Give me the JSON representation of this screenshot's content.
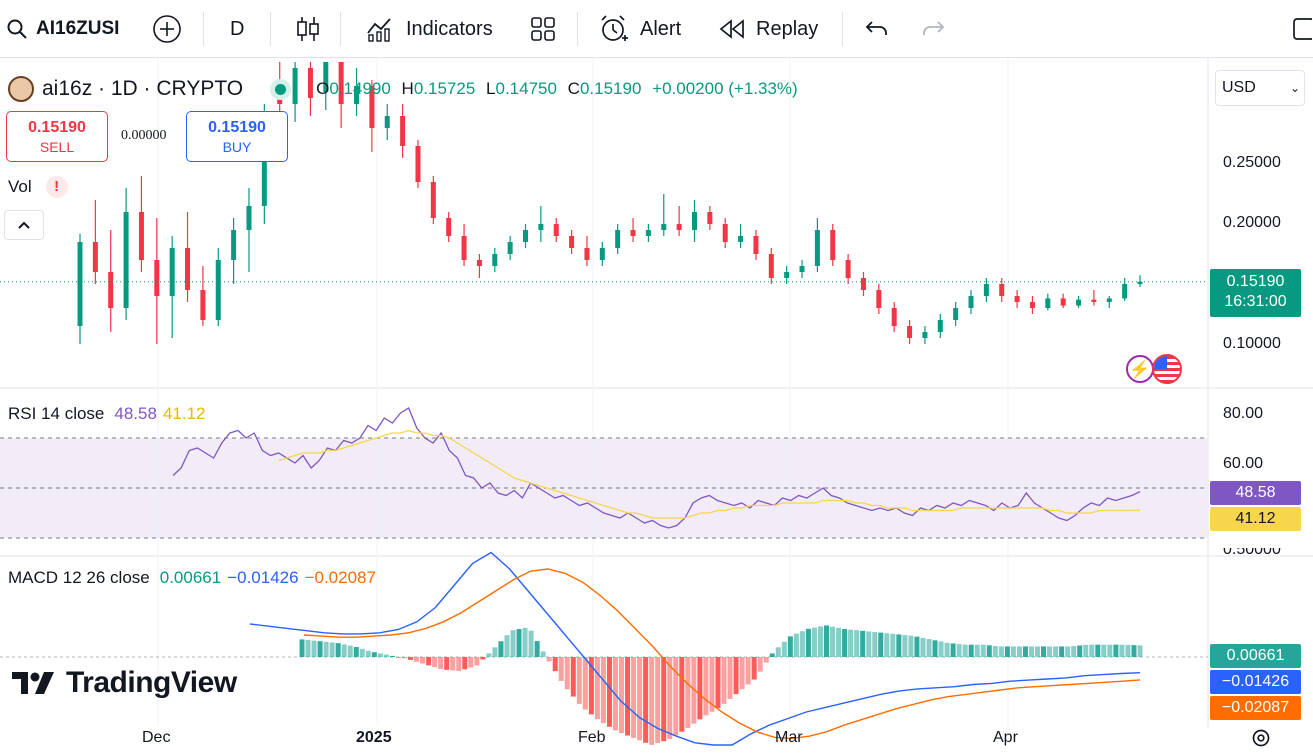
{
  "toolbar": {
    "symbol": "AI16ZUSI",
    "interval": "D",
    "indicators_label": "Indicators",
    "alert_label": "Alert",
    "replay_label": "Replay"
  },
  "header": {
    "symbol_title": "ai16z · 1D · CRYPTO",
    "o_label": "O",
    "o_value": "0.14990",
    "h_label": "H",
    "h_value": "0.15725",
    "l_label": "L",
    "l_value": "0.14750",
    "c_label": "C",
    "c_value": "0.15190",
    "change": "+0.00200 (+1.33%)",
    "currency": "USD"
  },
  "trade": {
    "sell_price": "0.15190",
    "sell_label": "SELL",
    "spread": "0.00000",
    "buy_price": "0.15190",
    "buy_label": "BUY"
  },
  "vol_label": "Vol",
  "price_axis": [
    "0.25000",
    "0.20000",
    "0.10000"
  ],
  "current_price": {
    "value": "0.15190",
    "countdown": "16:31:00"
  },
  "rsi": {
    "label": "RSI 14 close",
    "value": "48.58",
    "ma_value": "41.12",
    "axis": [
      "80.00",
      "60.00"
    ],
    "cut_label": "0.50000"
  },
  "macd": {
    "label": "MACD 12 26 close",
    "hist": "0.00661",
    "macd": "−0.01426",
    "signal": "−0.02087"
  },
  "time_axis": [
    "Dec",
    "2025",
    "Feb",
    "Mar",
    "Apr"
  ],
  "brand": "TradingView",
  "colors": {
    "up": "#089981",
    "down": "#f23645",
    "rsi": "#7e57c2",
    "rsi_ma": "#f7d54d",
    "macd": "#2962ff",
    "signal": "#ff6d00"
  },
  "chart_data": {
    "type": "candlestick",
    "symbol": "ai16z",
    "interval": "1D",
    "months": [
      "Dec",
      "2025",
      "Feb",
      "Mar",
      "Apr"
    ],
    "candles_ohlc": [
      [
        0.115,
        0.192,
        0.1,
        0.185
      ],
      [
        0.185,
        0.22,
        0.15,
        0.16
      ],
      [
        0.16,
        0.195,
        0.11,
        0.13
      ],
      [
        0.13,
        0.23,
        0.12,
        0.21
      ],
      [
        0.21,
        0.24,
        0.16,
        0.17
      ],
      [
        0.17,
        0.205,
        0.1,
        0.14
      ],
      [
        0.14,
        0.19,
        0.105,
        0.18
      ],
      [
        0.18,
        0.21,
        0.135,
        0.145
      ],
      [
        0.145,
        0.165,
        0.115,
        0.12
      ],
      [
        0.12,
        0.18,
        0.115,
        0.17
      ],
      [
        0.17,
        0.205,
        0.15,
        0.195
      ],
      [
        0.195,
        0.23,
        0.16,
        0.215
      ],
      [
        0.215,
        0.3,
        0.2,
        0.28
      ],
      [
        0.32,
        0.38,
        0.27,
        0.3
      ],
      [
        0.3,
        0.35,
        0.285,
        0.33
      ],
      [
        0.33,
        0.36,
        0.29,
        0.305
      ],
      [
        0.31,
        0.35,
        0.295,
        0.34
      ],
      [
        0.34,
        0.36,
        0.28,
        0.3
      ],
      [
        0.3,
        0.33,
        0.29,
        0.315
      ],
      [
        0.315,
        0.32,
        0.26,
        0.28
      ],
      [
        0.28,
        0.3,
        0.27,
        0.29
      ],
      [
        0.29,
        0.3,
        0.255,
        0.265
      ],
      [
        0.265,
        0.27,
        0.23,
        0.235
      ],
      [
        0.235,
        0.24,
        0.2,
        0.205
      ],
      [
        0.205,
        0.21,
        0.185,
        0.19
      ],
      [
        0.19,
        0.2,
        0.165,
        0.17
      ],
      [
        0.17,
        0.175,
        0.155,
        0.165
      ],
      [
        0.165,
        0.18,
        0.16,
        0.175
      ],
      [
        0.175,
        0.19,
        0.17,
        0.185
      ],
      [
        0.185,
        0.2,
        0.18,
        0.195
      ],
      [
        0.195,
        0.215,
        0.185,
        0.2
      ],
      [
        0.2,
        0.205,
        0.185,
        0.19
      ],
      [
        0.19,
        0.195,
        0.175,
        0.18
      ],
      [
        0.18,
        0.19,
        0.165,
        0.17
      ],
      [
        0.17,
        0.185,
        0.165,
        0.18
      ],
      [
        0.18,
        0.2,
        0.175,
        0.195
      ],
      [
        0.195,
        0.205,
        0.185,
        0.19
      ],
      [
        0.19,
        0.2,
        0.185,
        0.195
      ],
      [
        0.195,
        0.225,
        0.19,
        0.2
      ],
      [
        0.2,
        0.215,
        0.19,
        0.195
      ],
      [
        0.195,
        0.22,
        0.185,
        0.21
      ],
      [
        0.21,
        0.215,
        0.195,
        0.2
      ],
      [
        0.2,
        0.205,
        0.18,
        0.185
      ],
      [
        0.185,
        0.2,
        0.18,
        0.19
      ],
      [
        0.19,
        0.195,
        0.17,
        0.175
      ],
      [
        0.175,
        0.18,
        0.15,
        0.155
      ],
      [
        0.155,
        0.165,
        0.15,
        0.16
      ],
      [
        0.16,
        0.17,
        0.155,
        0.165
      ],
      [
        0.165,
        0.205,
        0.16,
        0.195
      ],
      [
        0.195,
        0.2,
        0.165,
        0.17
      ],
      [
        0.17,
        0.175,
        0.15,
        0.155
      ],
      [
        0.155,
        0.16,
        0.14,
        0.145
      ],
      [
        0.145,
        0.15,
        0.125,
        0.13
      ],
      [
        0.13,
        0.135,
        0.11,
        0.115
      ],
      [
        0.115,
        0.12,
        0.1,
        0.105
      ],
      [
        0.105,
        0.115,
        0.1,
        0.11
      ],
      [
        0.11,
        0.125,
        0.105,
        0.12
      ],
      [
        0.12,
        0.135,
        0.115,
        0.13
      ],
      [
        0.13,
        0.145,
        0.125,
        0.14
      ],
      [
        0.14,
        0.155,
        0.135,
        0.15
      ],
      [
        0.15,
        0.155,
        0.135,
        0.14
      ],
      [
        0.14,
        0.145,
        0.13,
        0.135
      ],
      [
        0.135,
        0.14,
        0.125,
        0.13
      ],
      [
        0.13,
        0.142,
        0.128,
        0.138
      ],
      [
        0.138,
        0.142,
        0.13,
        0.132
      ],
      [
        0.132,
        0.14,
        0.13,
        0.137
      ],
      [
        0.137,
        0.145,
        0.132,
        0.135
      ],
      [
        0.135,
        0.14,
        0.13,
        0.138
      ],
      [
        0.138,
        0.155,
        0.136,
        0.15
      ],
      [
        0.1499,
        0.1573,
        0.1475,
        0.1519
      ]
    ],
    "price_scale_ticks": [
      0.25,
      0.2,
      0.1
    ],
    "rsi_values": [
      55,
      58,
      65,
      66,
      64,
      62,
      68,
      72,
      73,
      70,
      72,
      65,
      63,
      64,
      62,
      60,
      63,
      58,
      61,
      66,
      65,
      69,
      68,
      70,
      75,
      73,
      78,
      76,
      80,
      82,
      74,
      70,
      68,
      72,
      65,
      62,
      55,
      54,
      50,
      52,
      48,
      47,
      49,
      46,
      52,
      50,
      48,
      46,
      47,
      45,
      43,
      44,
      42,
      40,
      39,
      38,
      40,
      38,
      36,
      37,
      35,
      34,
      35,
      38,
      44,
      46,
      47,
      45,
      44,
      43,
      44,
      42,
      45,
      44,
      43,
      46,
      45,
      47,
      46,
      48,
      50,
      47,
      46,
      44,
      43,
      42,
      41,
      42,
      41,
      42,
      40,
      39,
      42,
      41,
      43,
      42,
      44,
      43,
      45,
      44,
      43,
      41,
      44,
      42,
      43,
      48,
      44,
      42,
      40,
      38,
      37,
      39,
      42,
      44,
      43,
      46,
      45,
      46,
      47,
      48.58
    ],
    "rsi_ma_values": [
      null,
      null,
      null,
      null,
      null,
      null,
      null,
      null,
      null,
      null,
      null,
      null,
      null,
      61,
      62,
      63,
      64,
      64,
      64,
      65,
      65,
      66,
      67,
      68,
      69,
      70,
      71,
      72,
      72,
      73,
      72,
      72,
      71,
      71,
      70,
      68,
      66,
      64,
      62,
      60,
      58,
      56,
      54,
      53,
      52,
      51,
      50,
      49,
      48,
      47,
      46,
      45,
      44,
      43,
      42,
      41,
      40,
      40,
      39,
      38,
      38,
      38,
      38,
      38,
      39,
      40,
      40,
      41,
      41,
      42,
      42,
      43,
      43,
      43,
      43,
      44,
      44,
      44,
      44,
      44,
      45,
      45,
      45,
      45,
      44,
      44,
      43,
      43,
      42,
      42,
      42,
      41,
      41,
      41,
      41,
      41,
      41,
      42,
      42,
      42,
      42,
      42,
      42,
      42,
      42,
      42,
      42,
      42,
      41,
      41,
      40,
      40,
      40,
      40,
      41,
      41,
      41,
      41,
      41,
      41.12
    ],
    "macd_values": [
      0.03,
      0.028,
      0.026,
      0.024,
      0.022,
      0.021,
      0.021,
      0.022,
      0.025,
      0.032,
      0.045,
      0.065,
      0.085,
      0.095,
      0.08,
      0.06,
      0.04,
      0.02,
      0.0,
      -0.02,
      -0.04,
      -0.055,
      -0.065,
      -0.072,
      -0.078,
      -0.08,
      -0.08,
      -0.07,
      -0.062,
      -0.056,
      -0.05,
      -0.046,
      -0.042,
      -0.038,
      -0.034,
      -0.031,
      -0.029,
      -0.028,
      -0.027,
      -0.025,
      -0.024,
      -0.022,
      -0.021,
      -0.02,
      -0.019,
      -0.017,
      -0.016,
      -0.015,
      -0.01426
    ],
    "signal_values": [
      0.02,
      0.019,
      0.018,
      0.018,
      0.019,
      0.02,
      0.022,
      0.026,
      0.032,
      0.04,
      0.05,
      0.06,
      0.07,
      0.078,
      0.08,
      0.076,
      0.068,
      0.056,
      0.042,
      0.026,
      0.01,
      -0.008,
      -0.024,
      -0.038,
      -0.05,
      -0.06,
      -0.068,
      -0.073,
      -0.074,
      -0.072,
      -0.068,
      -0.062,
      -0.057,
      -0.052,
      -0.047,
      -0.043,
      -0.039,
      -0.036,
      -0.034,
      -0.032,
      -0.03,
      -0.028,
      -0.027,
      -0.026,
      -0.025,
      -0.024,
      -0.023,
      -0.022,
      -0.02087
    ],
    "macd_hist_latest": 0.00661,
    "macd_latest": -0.01426,
    "signal_latest": -0.02087,
    "rsi_latest": 48.58,
    "rsi_ma_latest": 41.12,
    "current_price": 0.1519
  }
}
